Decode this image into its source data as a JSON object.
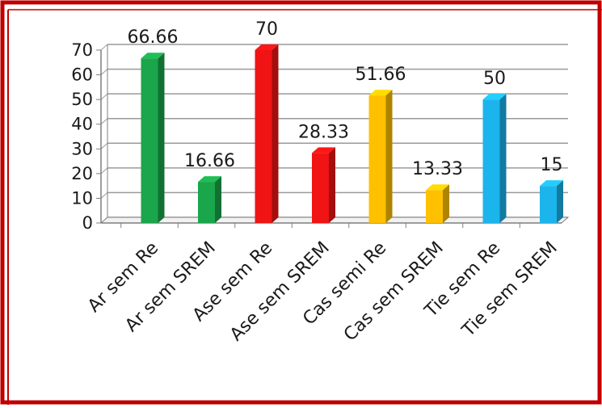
{
  "chart_data": {
    "type": "bar",
    "title": "",
    "xlabel": "",
    "ylabel": "",
    "ylim": [
      0,
      70
    ],
    "yticks": [
      0,
      10,
      20,
      30,
      40,
      50,
      60,
      70
    ],
    "grid": true,
    "legend": "none",
    "style": "3d-column",
    "categories": [
      "Ar  sem Re",
      "Ar  sem SREM",
      "Ase sem Re",
      "Ase sem SREM",
      "Cas semi Re",
      "Cas sem SREM",
      "Tie sem Re",
      "Tie sem SREM"
    ],
    "values": [
      66.66,
      16.66,
      70,
      28.33,
      51.66,
      13.33,
      50,
      15
    ],
    "value_labels": [
      "66.66",
      "16.66",
      "70",
      "28.33",
      "51.66",
      "13.33",
      "50",
      "15"
    ],
    "colors": [
      "#1aa64a",
      "#1aa64a",
      "#f01414",
      "#f01414",
      "#ffc000",
      "#ffc000",
      "#1cb4ec",
      "#1cb4ec"
    ]
  },
  "frame": {
    "border_color": "#c00000"
  }
}
